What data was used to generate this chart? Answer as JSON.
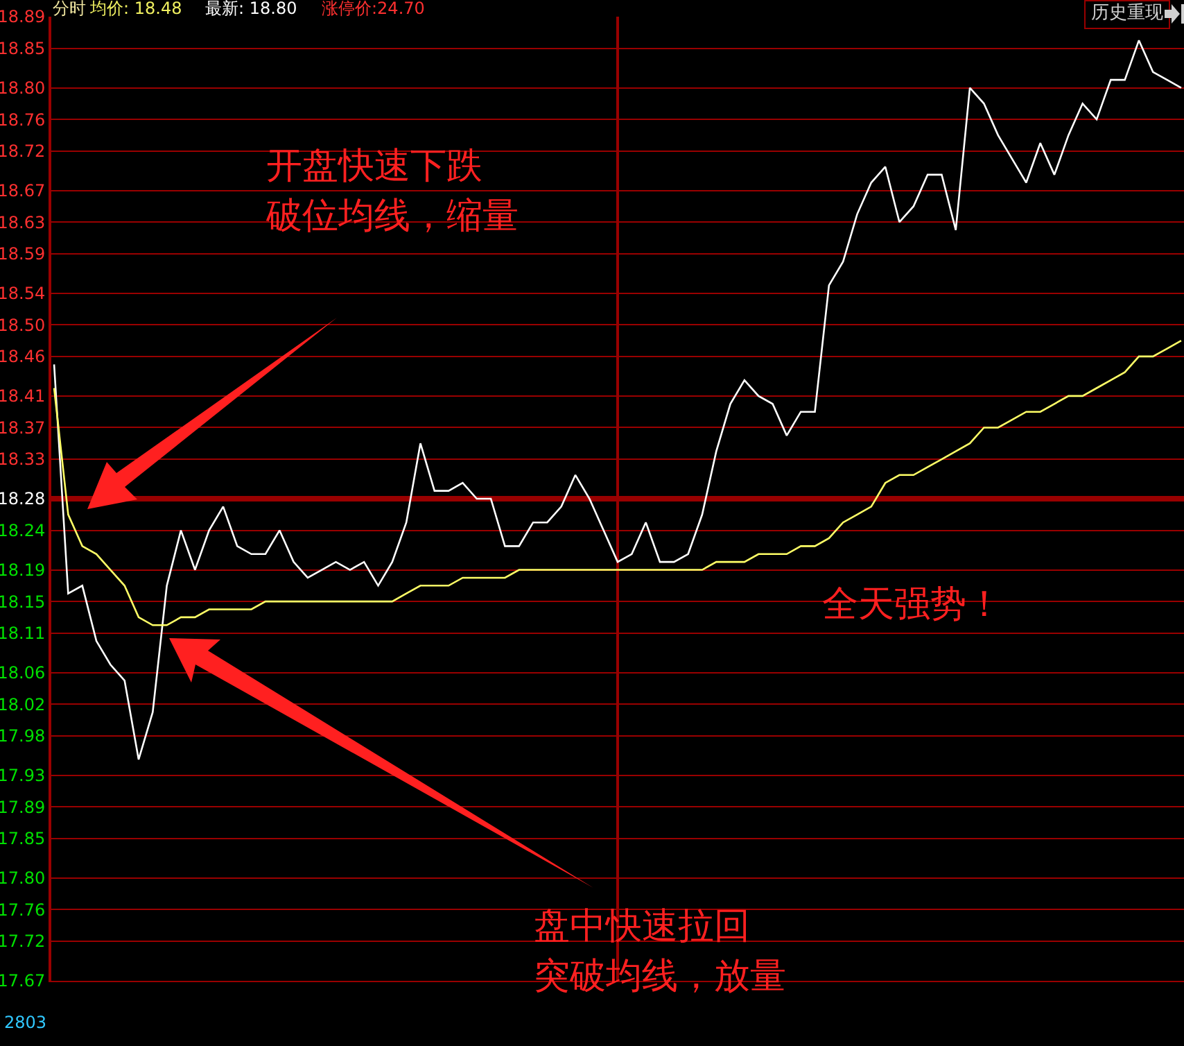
{
  "chart_data": {
    "type": "line",
    "annotations": [
      "分时",
      "均价: 18.48",
      "最新: 18.80",
      "涨停价:24.70",
      "历史重现",
      "开盘快速下跌",
      "破位均线，缩量",
      "盘中快速拉回",
      "突破均线，放量",
      "全天强势！",
      "2803"
    ],
    "categories": [
      null,
      null,
      null,
      null,
      null,
      null,
      null,
      null,
      null,
      null,
      null,
      null,
      null,
      null,
      null,
      null,
      null,
      null,
      null,
      null,
      null,
      null,
      null,
      null,
      null,
      null,
      null,
      null,
      null,
      null,
      null,
      null,
      null,
      null,
      null,
      null,
      null,
      null,
      null,
      null,
      null,
      null,
      null,
      null,
      null,
      null,
      null,
      null,
      null,
      null,
      null,
      null,
      null,
      null,
      null,
      null,
      null,
      null,
      null,
      null,
      null,
      null,
      null,
      null,
      null,
      null,
      null,
      null,
      null,
      null,
      null,
      null,
      null,
      null,
      null,
      null,
      null,
      null,
      null,
      null,
      null
    ],
    "series": [
      {
        "color": "#ffffff",
        "values": [
          18.45,
          18.16,
          18.17,
          18.1,
          18.07,
          18.05,
          17.95,
          18.01,
          18.17,
          18.24,
          18.19,
          18.24,
          18.27,
          18.22,
          18.21,
          18.21,
          18.24,
          18.2,
          18.18,
          18.19,
          18.2,
          18.19,
          18.2,
          18.17,
          18.2,
          18.25,
          18.35,
          18.29,
          18.29,
          18.3,
          18.28,
          18.28,
          18.22,
          18.22,
          18.25,
          18.25,
          18.27,
          18.31,
          18.28,
          18.24,
          18.2,
          18.21,
          18.25,
          18.2,
          18.2,
          18.21,
          18.26,
          18.34,
          18.4,
          18.43,
          18.41,
          18.4,
          18.36,
          18.39,
          18.39,
          18.55,
          18.58,
          18.64,
          18.68,
          18.7,
          18.63,
          18.65,
          18.69,
          18.69,
          18.62,
          18.8,
          18.78,
          18.74,
          18.71,
          18.68,
          18.73,
          18.69,
          18.74,
          18.78,
          18.76,
          18.81,
          18.81,
          18.86,
          18.82,
          18.81,
          18.8
        ]
      },
      {
        "color": "#ffff66",
        "values": [
          18.42,
          18.26,
          18.22,
          18.21,
          18.19,
          18.17,
          18.13,
          18.12,
          18.12,
          18.13,
          18.13,
          18.14,
          18.14,
          18.14,
          18.14,
          18.15,
          18.15,
          18.15,
          18.15,
          18.15,
          18.15,
          18.15,
          18.15,
          18.15,
          18.15,
          18.16,
          18.17,
          18.17,
          18.17,
          18.18,
          18.18,
          18.18,
          18.18,
          18.19,
          18.19,
          18.19,
          18.19,
          18.19,
          18.19,
          18.19,
          18.19,
          18.19,
          18.19,
          18.19,
          18.19,
          18.19,
          18.19,
          18.2,
          18.2,
          18.2,
          18.21,
          18.21,
          18.21,
          18.22,
          18.22,
          18.23,
          18.25,
          18.26,
          18.27,
          18.3,
          18.31,
          18.31,
          18.32,
          18.33,
          18.34,
          18.35,
          18.37,
          18.37,
          18.38,
          18.39,
          18.39,
          18.4,
          18.41,
          18.41,
          18.42,
          18.43,
          18.44,
          18.46,
          18.46,
          18.47,
          18.48
        ]
      }
    ],
    "ylim": [
      17.67,
      18.89
    ],
    "yticks": [
      17.67,
      17.72,
      17.76,
      {
        "value": 17.8,
        "label": "17.80"
      },
      17.85,
      17.89,
      17.93,
      17.98,
      18.02,
      18.06,
      18.11,
      18.15,
      18.19,
      18.24,
      18.28,
      18.33,
      18.37,
      18.41,
      18.46,
      {
        "value": 18.5,
        "label": "18.50"
      },
      18.54,
      18.59,
      18.63,
      18.67,
      18.72,
      18.76,
      {
        "value": 18.8,
        "label": "18.80"
      },
      18.85,
      18.89
    ],
    "ref_lines": [
      {
        "axis": "y",
        "value": 18.28,
        "color": "#990000"
      }
    ],
    "grid": true,
    "tick_labels": "y",
    "marker": "none",
    "line_style": "solid"
  }
}
